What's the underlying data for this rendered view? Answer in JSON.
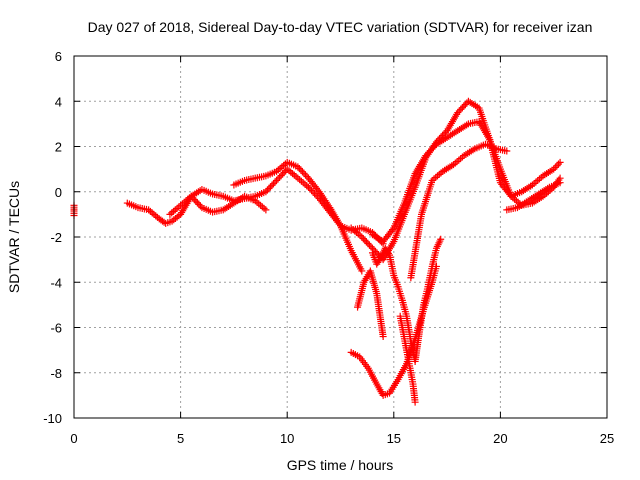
{
  "chart_data": {
    "type": "scatter",
    "title": "Day 027 of 2018, Sidereal Day-to-day VTEC variation (SDTVAR) for receiver izan",
    "xlabel": "GPS time / hours",
    "ylabel": "SDTVAR / TECUs",
    "xlim": [
      0,
      25
    ],
    "ylim": [
      -10,
      6
    ],
    "xticks": [
      0,
      5,
      10,
      15,
      20,
      25
    ],
    "yticks": [
      -10,
      -8,
      -6,
      -4,
      -2,
      0,
      2,
      4,
      6
    ],
    "grid": true,
    "marker": "+",
    "color": "#ff0000",
    "series": [
      {
        "x": [
          0.0,
          0.0,
          0.0
        ],
        "y": [
          -0.6,
          -0.85,
          -1.05
        ]
      },
      {
        "x": [
          2.5,
          3.0,
          3.5,
          4.0,
          4.3,
          4.6,
          5.0,
          5.5,
          6.0,
          6.5,
          7.0,
          7.5,
          8.0,
          8.5,
          9.0,
          9.5,
          10.0,
          10.5,
          11.0,
          11.5,
          12.0,
          12.5,
          13.0,
          13.5,
          14.0,
          14.5
        ],
        "y": [
          -0.5,
          -0.7,
          -0.8,
          -1.2,
          -1.4,
          -1.3,
          -1.0,
          -0.2,
          0.1,
          -0.1,
          -0.2,
          -0.4,
          -0.3,
          -0.2,
          0.0,
          0.5,
          1.0,
          0.6,
          0.2,
          -0.3,
          -0.9,
          -1.5,
          -1.7,
          -1.6,
          -1.8,
          -2.3
        ]
      },
      {
        "x": [
          4.5,
          5.0,
          5.5,
          6.0,
          6.5,
          7.0,
          7.5,
          8.0,
          8.5,
          9.0
        ],
        "y": [
          -1.0,
          -0.6,
          -0.2,
          -0.7,
          -0.9,
          -0.8,
          -0.5,
          -0.2,
          -0.4,
          -0.8
        ]
      },
      {
        "x": [
          7.5,
          8.0,
          8.5,
          9.0,
          9.5,
          10.0,
          10.5,
          11.0,
          11.5,
          12.0,
          12.5,
          13.0,
          13.5
        ],
        "y": [
          0.3,
          0.5,
          0.6,
          0.7,
          0.9,
          1.3,
          1.1,
          0.6,
          0.0,
          -0.7,
          -1.5,
          -2.6,
          -3.5
        ]
      },
      {
        "x": [
          13.0,
          13.5,
          14.0,
          14.5,
          15.0,
          15.5,
          16.0,
          16.5,
          17.0,
          17.5,
          18.0,
          18.5,
          19.0,
          19.5,
          20.0,
          20.5,
          21.0,
          21.5,
          22.0,
          22.5,
          22.8
        ],
        "y": [
          -1.6,
          -2.0,
          -2.5,
          -3.0,
          -2.2,
          -1.0,
          0.2,
          1.5,
          2.2,
          2.7,
          3.5,
          4.0,
          3.7,
          2.3,
          0.4,
          -0.2,
          0.0,
          0.3,
          0.7,
          1.0,
          1.3
        ]
      },
      {
        "x": [
          14.0,
          14.5,
          15.0,
          15.5,
          16.0,
          16.5,
          17.0,
          17.5,
          18.0,
          18.5,
          19.0,
          19.5,
          20.0,
          20.5,
          21.0,
          21.5,
          22.0,
          22.5,
          22.8
        ],
        "y": [
          -1.9,
          -2.2,
          -1.6,
          -0.5,
          0.8,
          1.6,
          2.1,
          2.4,
          2.7,
          3.0,
          3.1,
          2.3,
          1.0,
          -0.2,
          -0.6,
          -0.5,
          -0.2,
          0.2,
          0.6
        ]
      },
      {
        "x": [
          15.8,
          16.3,
          16.8,
          17.3,
          17.8,
          18.3,
          18.8,
          19.3,
          19.8,
          20.3
        ],
        "y": [
          -3.8,
          -1.0,
          0.5,
          0.9,
          1.2,
          1.6,
          1.9,
          2.1,
          1.9,
          1.8
        ]
      },
      {
        "x": [
          20.3,
          20.8,
          21.3,
          21.8,
          22.3,
          22.8
        ],
        "y": [
          -0.8,
          -0.7,
          -0.4,
          -0.1,
          0.2,
          0.4
        ]
      },
      {
        "x": [
          14.0,
          14.2,
          14.4,
          14.6,
          14.8,
          15.0,
          15.2,
          15.4,
          15.6,
          15.8,
          16.0,
          16.2,
          16.4,
          16.6,
          16.8,
          17.0,
          17.2
        ],
        "y": [
          -2.7,
          -3.2,
          -2.9,
          -2.5,
          -2.8,
          -3.7,
          -4.2,
          -4.8,
          -5.5,
          -6.6,
          -7.5,
          -6.2,
          -5.0,
          -4.2,
          -3.3,
          -2.5,
          -2.1
        ]
      },
      {
        "x": [
          13.3,
          13.6,
          13.9,
          14.2,
          14.5
        ],
        "y": [
          -5.1,
          -4.0,
          -3.5,
          -4.5,
          -6.4
        ]
      },
      {
        "x": [
          15.3,
          15.5,
          15.7,
          15.9,
          16.0
        ],
        "y": [
          -5.5,
          -6.5,
          -7.5,
          -8.5,
          -9.3
        ]
      },
      {
        "x": [
          13.0,
          13.4,
          13.8,
          14.2,
          14.5,
          14.8,
          15.2,
          15.6,
          16.0,
          16.4,
          16.8,
          17.0
        ],
        "y": [
          -7.1,
          -7.3,
          -7.8,
          -8.5,
          -9.0,
          -8.9,
          -8.3,
          -7.6,
          -6.5,
          -5.2,
          -4.0,
          -3.3
        ]
      }
    ]
  }
}
